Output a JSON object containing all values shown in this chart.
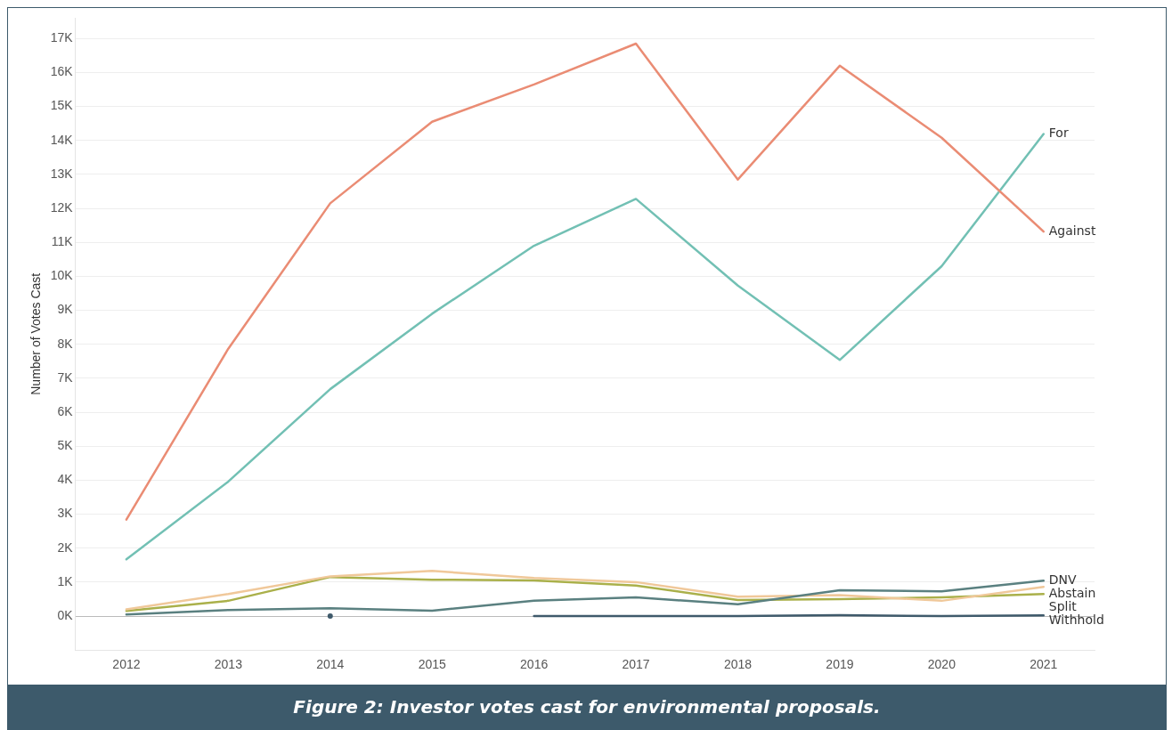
{
  "chart_data": {
    "type": "line",
    "ylabel": "Number of Votes Cast",
    "annotations": [
      "Figure 2: Investor votes cast for environmental proposals."
    ],
    "categories": [
      "2012",
      "2013",
      "2014",
      "2015",
      "2016",
      "2017",
      "2018",
      "2019",
      "2020",
      "2021"
    ],
    "series": [
      {
        "name": "Against",
        "color": "#ea8c74",
        "values": [
          2840,
          7870,
          12150,
          14550,
          15650,
          16850,
          12850,
          16200,
          14080,
          11320
        ]
      },
      {
        "name": "For",
        "color": "#72c0b4",
        "values": [
          1670,
          3960,
          6680,
          8900,
          10900,
          12280,
          9730,
          7540,
          10300,
          14190
        ]
      },
      {
        "name": "DNV",
        "color": "#5a8080",
        "values": [
          50,
          180,
          230,
          160,
          450,
          550,
          350,
          760,
          730,
          1040
        ]
      },
      {
        "name": "Abstain",
        "color": "#f0c89a",
        "values": [
          200,
          650,
          1170,
          1330,
          1120,
          1000,
          570,
          620,
          450,
          860
        ]
      },
      {
        "name": "Split",
        "color": "#aab04a",
        "values": [
          150,
          450,
          1150,
          1070,
          1050,
          900,
          470,
          500,
          550,
          650
        ]
      },
      {
        "name": "Withhold",
        "color": "#3f5a6b",
        "values": [
          null,
          null,
          0,
          null,
          0,
          0,
          0,
          30,
          0,
          20
        ]
      }
    ],
    "ylim": [
      -1000,
      17600
    ],
    "yticks": [
      {
        "value": 0,
        "label": "0K"
      },
      {
        "value": 1000,
        "label": "1K"
      },
      {
        "value": 2000,
        "label": "2K"
      },
      {
        "value": 3000,
        "label": "3K"
      },
      {
        "value": 4000,
        "label": "4K"
      },
      {
        "value": 5000,
        "label": "5K"
      },
      {
        "value": 6000,
        "label": "6K"
      },
      {
        "value": 7000,
        "label": "7K"
      },
      {
        "value": 8000,
        "label": "8K"
      },
      {
        "value": 9000,
        "label": "9K"
      },
      {
        "value": 10000,
        "label": "10K"
      },
      {
        "value": 11000,
        "label": "11K"
      },
      {
        "value": 12000,
        "label": "12K"
      },
      {
        "value": 13000,
        "label": "13K"
      },
      {
        "value": 14000,
        "label": "14K"
      },
      {
        "value": 15000,
        "label": "15K"
      },
      {
        "value": 16000,
        "label": "16K"
      },
      {
        "value": 17000,
        "label": "17K"
      }
    ],
    "grid": "y",
    "legend": false,
    "marker": "none",
    "line_style": "solid"
  }
}
